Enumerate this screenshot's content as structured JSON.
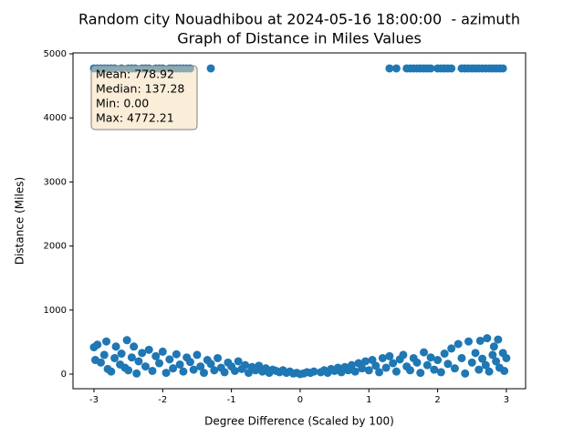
{
  "chart_data": {
    "type": "scatter",
    "title": "Random city Nouadhibou at 2024-05-16 18:00:00  - azimuth",
    "subtitle": "Graph of Distance in Miles Values",
    "x_label": "Degree Difference (Scaled by 100)",
    "y_label": "Distance (Miles)",
    "annotation": [
      "Mean: 778.92",
      "Median: 137.28",
      "Min: 0.00",
      "Max: 4772.21"
    ],
    "xlim": [
      -3.305,
      3.28
    ],
    "ylim": [
      -228,
      5014
    ],
    "xticks": [
      -3,
      -2,
      -1,
      0,
      1,
      2,
      3
    ],
    "yticks": [
      0,
      1000,
      2000,
      3000,
      4000,
      5000
    ],
    "grid": false,
    "x": [
      -3.0,
      -2.95,
      -2.9,
      -2.85,
      -2.8,
      -2.75,
      -2.7,
      -2.6,
      -2.5,
      -2.45,
      -2.4,
      -2.3,
      -2.25,
      -2.2,
      -2.1,
      -2.05,
      -2.0,
      -1.9,
      -1.85,
      -1.8,
      -1.75,
      -1.7,
      -1.65,
      -1.6,
      -1.3,
      1.3,
      1.4,
      1.55,
      1.6,
      1.65,
      1.7,
      1.75,
      1.8,
      1.85,
      1.9,
      2.0,
      2.05,
      2.1,
      2.15,
      2.2,
      2.35,
      2.4,
      2.45,
      2.5,
      2.55,
      2.6,
      2.65,
      2.7,
      2.75,
      2.8,
      2.85,
      2.9,
      2.95,
      -3.0,
      -2.98,
      -2.95,
      -2.9,
      -2.85,
      -2.82,
      -2.8,
      -2.75,
      -2.7,
      -2.68,
      -2.62,
      -2.6,
      -2.55,
      -2.52,
      -2.5,
      -2.45,
      -2.42,
      -2.38,
      -2.35,
      -2.3,
      -2.25,
      -2.2,
      -2.15,
      -2.1,
      -2.05,
      -2.0,
      -1.95,
      -1.9,
      -1.85,
      -1.8,
      -1.75,
      -1.7,
      -1.65,
      -1.6,
      -1.55,
      -1.5,
      -1.45,
      -1.4,
      -1.35,
      -1.3,
      -1.25,
      -1.2,
      -1.15,
      -1.1,
      -1.05,
      -1.0,
      -0.95,
      -0.9,
      -0.85,
      -0.8,
      -0.75,
      -0.7,
      -0.65,
      -0.6,
      -0.55,
      -0.5,
      -0.45,
      -0.4,
      -0.35,
      -0.3,
      -0.25,
      -0.2,
      -0.15,
      -0.1,
      -0.05,
      0,
      0.05,
      0.1,
      0.15,
      0.2,
      0.3,
      0.35,
      0.4,
      0.45,
      0.5,
      0.55,
      0.6,
      0.65,
      0.7,
      0.75,
      0.8,
      0.85,
      0.9,
      0.95,
      1.0,
      1.05,
      1.1,
      1.15,
      1.2,
      1.25,
      1.3,
      1.35,
      1.4,
      1.45,
      1.5,
      1.55,
      1.6,
      1.65,
      1.7,
      1.75,
      1.8,
      1.85,
      1.9,
      1.95,
      2.0,
      2.05,
      2.1,
      2.15,
      2.2,
      2.25,
      2.3,
      2.35,
      2.4,
      2.45,
      2.5,
      2.55,
      2.6,
      2.62,
      2.65,
      2.7,
      2.72,
      2.75,
      2.8,
      2.82,
      2.85,
      2.88,
      2.9,
      2.95,
      2.97,
      3.0
    ],
    "series": [
      {
        "name": "Distance",
        "color": "#1f77b4",
        "values": [
          4772,
          4772,
          4772,
          4772,
          4772,
          4772,
          4772,
          4772,
          4772,
          4772,
          4772,
          4772,
          4772,
          4772,
          4772,
          4772,
          4772,
          4772,
          4772,
          4772,
          4772,
          4772,
          4772,
          4772,
          4772,
          4772,
          4772,
          4772,
          4772,
          4772,
          4772,
          4772,
          4772,
          4772,
          4772,
          4772,
          4772,
          4772,
          4772,
          4772,
          4772,
          4772,
          4772,
          4772,
          4772,
          4772,
          4772,
          4772,
          4772,
          4772,
          4772,
          4772,
          4772,
          420,
          220,
          460,
          180,
          300,
          510,
          80,
          40,
          250,
          430,
          150,
          320,
          100,
          530,
          60,
          260,
          430,
          10,
          200,
          330,
          120,
          380,
          50,
          280,
          170,
          350,
          20,
          230,
          90,
          310,
          150,
          40,
          260,
          190,
          70,
          300,
          120,
          20,
          220,
          160,
          60,
          250,
          100,
          30,
          180,
          120,
          50,
          200,
          80,
          140,
          20,
          110,
          60,
          130,
          40,
          90,
          20,
          70,
          50,
          30,
          60,
          20,
          40,
          10,
          20,
          0,
          10,
          30,
          20,
          40,
          30,
          60,
          20,
          80,
          50,
          100,
          30,
          110,
          60,
          140,
          40,
          170,
          90,
          200,
          60,
          220,
          130,
          30,
          250,
          100,
          280,
          170,
          40,
          230,
          300,
          120,
          60,
          250,
          180,
          20,
          340,
          140,
          260,
          70,
          220,
          30,
          320,
          160,
          400,
          90,
          470,
          250,
          10,
          510,
          180,
          330,
          70,
          520,
          240,
          140,
          560,
          40,
          300,
          430,
          200,
          540,
          100,
          330,
          50,
          250
        ]
      }
    ]
  }
}
